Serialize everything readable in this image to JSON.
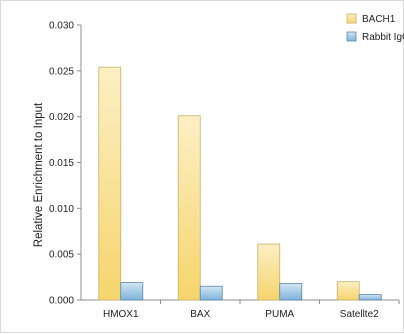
{
  "chart_data": {
    "type": "bar",
    "title": "",
    "xlabel": "",
    "ylabel": "Relative Enrichment to Input",
    "categories": [
      "HMOX1",
      "BAX",
      "PUMA",
      "Satellte2"
    ],
    "series": [
      {
        "name": "BACH1",
        "values": [
          0.0254,
          0.0201,
          0.0061,
          0.002
        ]
      },
      {
        "name": "Rabbit IgG",
        "values": [
          0.0019,
          0.0015,
          0.0018,
          0.0006
        ]
      }
    ],
    "ylim": [
      0,
      0.03
    ],
    "yticks": [
      "0.000",
      "0.005",
      "0.010",
      "0.015",
      "0.020",
      "0.025",
      "0.030"
    ],
    "grid": false,
    "legend_position": "top-right",
    "colors": {
      "BACH1_top": "#fcefc4",
      "BACH1_bottom": "#f6d56c",
      "BACH1_edge": "#c9b06a",
      "IgG_top": "#d2e6f4",
      "IgG_bottom": "#7fb3db",
      "IgG_edge": "#5c86a8",
      "axis": "#8c8c8c"
    }
  }
}
